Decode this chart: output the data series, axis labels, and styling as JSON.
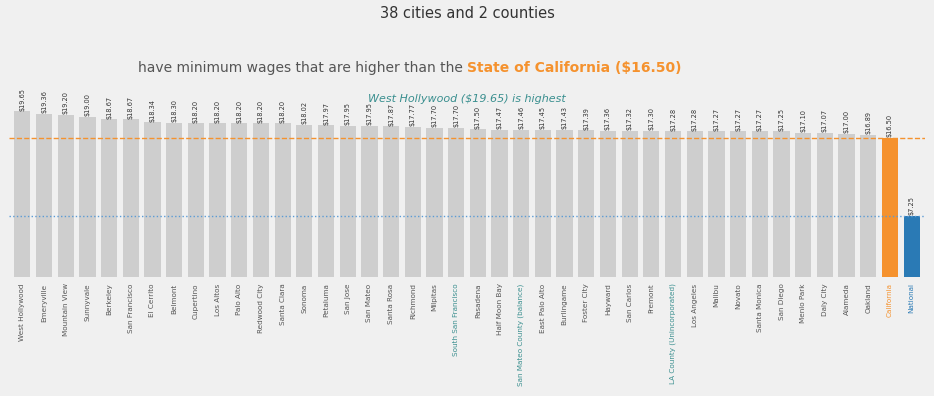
{
  "categories": [
    "West Hollywood",
    "Emeryville",
    "Mountain View",
    "Sunnyvale",
    "Berkeley",
    "San Francisco",
    "El Cerrito",
    "Belmont",
    "Cupertino",
    "Los Altos",
    "Palo Alto",
    "Redwood City",
    "Santa Clara",
    "Sonoma",
    "Petaluma",
    "San Jose",
    "San Mateo",
    "Santa Rosa",
    "Richmond",
    "Milpitas",
    "South San Francisco",
    "Pasadena",
    "Half Moon Bay",
    "San Mateo County (balance)",
    "East Palo Alto",
    "Burlingame",
    "Foster City",
    "Hayward",
    "San Carlos",
    "Fremont",
    "LA County (Unincorporated)",
    "Los Angeles",
    "Malibu",
    "Novato",
    "Santa Monica",
    "San Diego",
    "Menlo Park",
    "Daly City",
    "Alameda",
    "Oakland",
    "California",
    "National"
  ],
  "values": [
    19.65,
    19.36,
    19.2,
    19.0,
    18.67,
    18.67,
    18.34,
    18.3,
    18.2,
    18.2,
    18.2,
    18.2,
    18.2,
    18.02,
    17.97,
    17.95,
    17.95,
    17.87,
    17.77,
    17.7,
    17.7,
    17.5,
    17.47,
    17.46,
    17.45,
    17.43,
    17.39,
    17.36,
    17.32,
    17.3,
    17.28,
    17.28,
    17.27,
    17.27,
    17.27,
    17.25,
    17.1,
    17.07,
    17.0,
    16.89,
    16.5,
    7.25
  ],
  "gray_color": "#cecece",
  "orange_color": "#f5922e",
  "blue_color": "#2a7ab5",
  "california_line_color": "#f5922e",
  "national_line_color": "#5b9bd5",
  "california_value": 16.5,
  "national_value": 7.25,
  "bg_color": "#f0f0f0",
  "label_fontsize": 5.2,
  "value_fontsize": 4.8,
  "gray_text_color": "#555555",
  "orange_text_color": "#f5922e",
  "blue_text_color": "#2a7ab5",
  "teal_text_color": "#3a8f8f",
  "teal_counties": [
    "South San Francisco",
    "San Mateo County (balance)",
    "LA County (Unincorporated)"
  ]
}
